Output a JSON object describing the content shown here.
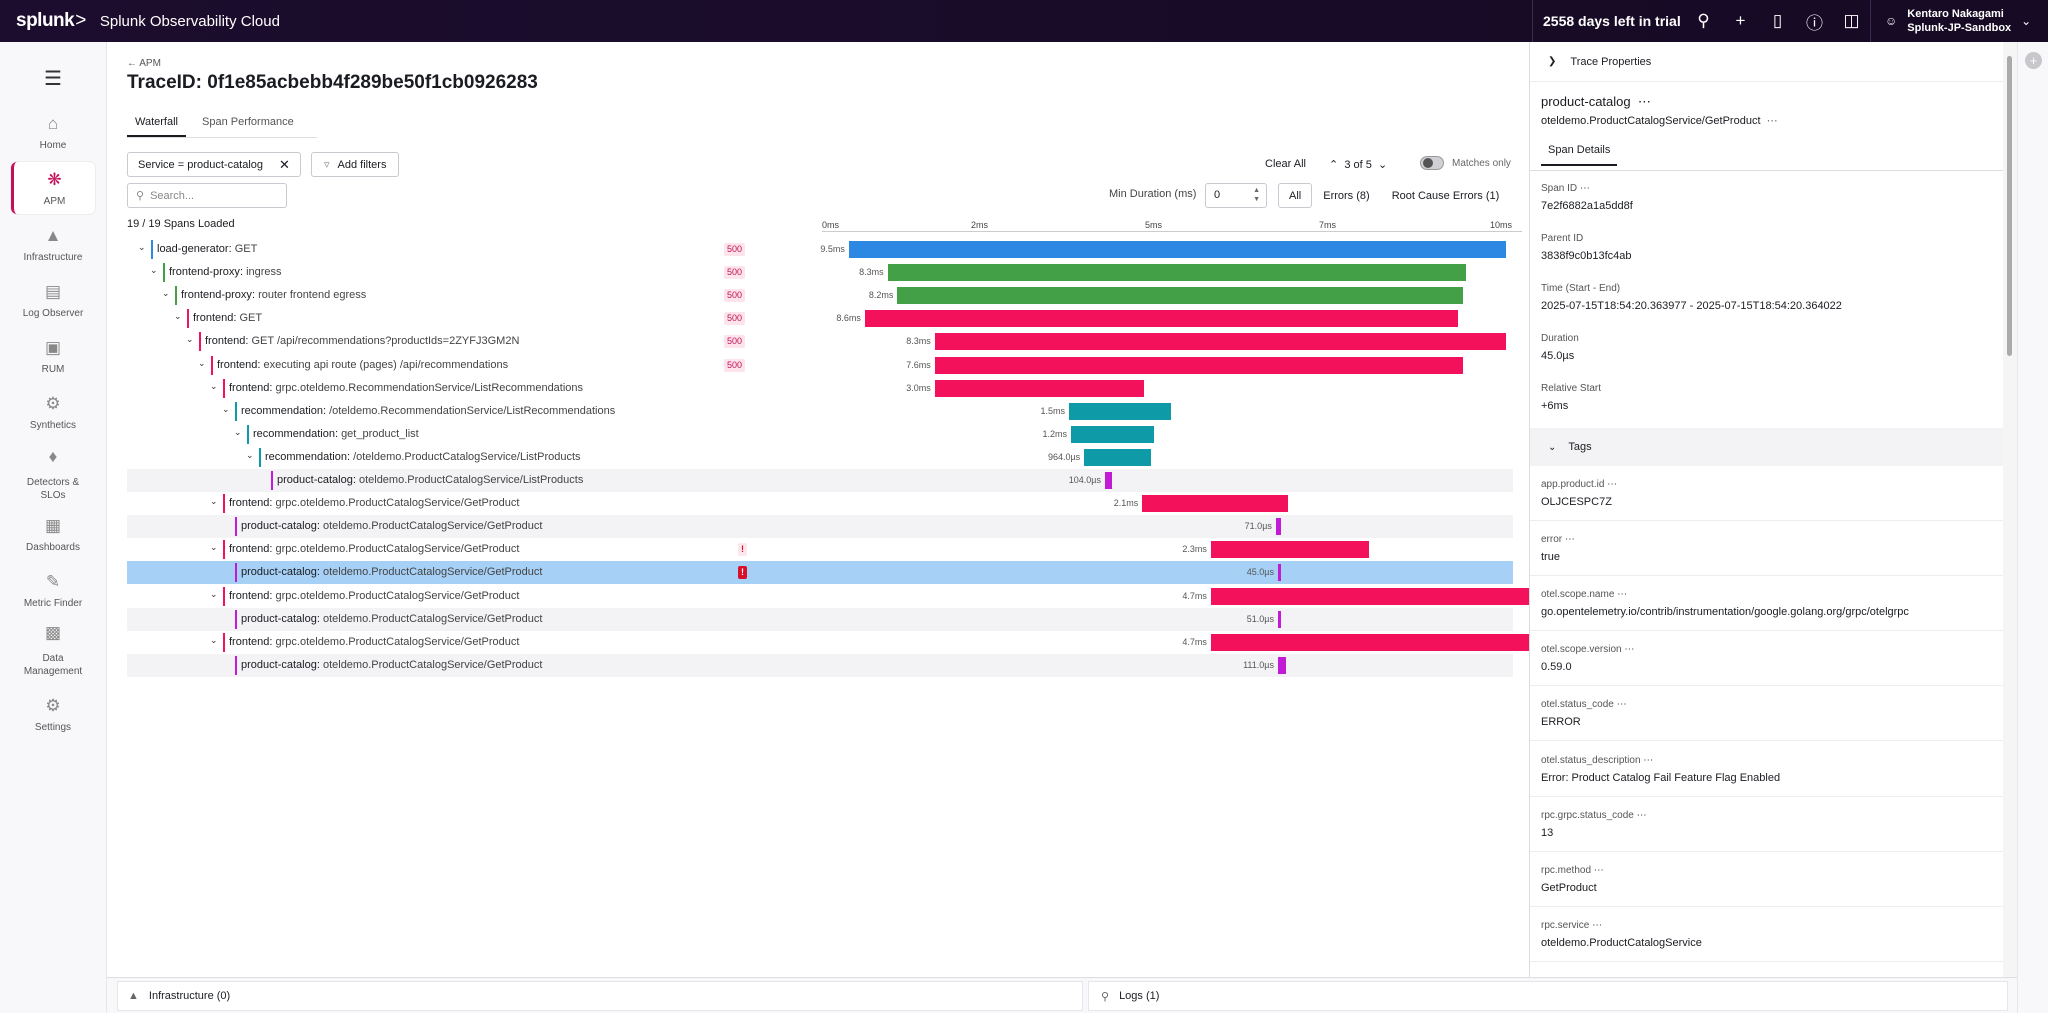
{
  "topbar": {
    "logo": "splunk",
    "logo_suffix": ">",
    "product": "Splunk Observability Cloud",
    "trial": "2558 days left in trial",
    "user_name": "Kentaro Nakagami",
    "user_org": "Splunk-JP-Sandbox"
  },
  "nav": {
    "items": [
      {
        "label": "Home",
        "icon": "home-icon"
      },
      {
        "label": "APM",
        "icon": "apm-icon"
      },
      {
        "label": "Infrastructure",
        "icon": "infrastructure-icon"
      },
      {
        "label": "Log Observer",
        "icon": "log-icon"
      },
      {
        "label": "RUM",
        "icon": "rum-icon"
      },
      {
        "label": "Synthetics",
        "icon": "synthetics-icon"
      },
      {
        "label": "Detectors &",
        "label2": "SLOs",
        "icon": "bell-icon"
      },
      {
        "label": "Dashboards",
        "icon": "dashboard-icon"
      },
      {
        "label": "Metric Finder",
        "icon": "metric-icon"
      },
      {
        "label": "Data",
        "label2": "Management",
        "icon": "database-icon"
      },
      {
        "label": "Settings",
        "icon": "gear-icon"
      }
    ]
  },
  "main": {
    "back": "APM",
    "title": "TraceID: 0f1e85acbebb4f289be50f1cb0926283",
    "tabs": [
      "Waterfall",
      "Span Performance"
    ],
    "filter_chip": "Service = product-catalog",
    "add_filters": "Add filters",
    "clear_all": "Clear All",
    "nav_count": "3 of 5",
    "matches_only": "Matches only",
    "search_placeholder": "Search...",
    "min_duration_label": "Min Duration (ms)",
    "min_duration_value": "0",
    "segments": [
      "All",
      "Errors (8)",
      "Root Cause Errors (1)"
    ],
    "spans_loaded": "19 / 19 Spans Loaded",
    "axis": [
      "0ms",
      "2ms",
      "5ms",
      "7ms",
      "10ms"
    ]
  },
  "spans": [
    {
      "svc": "load-generator",
      "op": "GET",
      "depth": 0,
      "badge": "500",
      "dur": "9.5ms",
      "start": 0.01,
      "len": 0.95,
      "color": "#2d88e3",
      "chev": true
    },
    {
      "svc": "frontend-proxy",
      "op": "ingress",
      "depth": 1,
      "badge": "500",
      "dur": "8.3ms",
      "start": 0.066,
      "len": 0.836,
      "color": "#43a047",
      "chev": true
    },
    {
      "svc": "frontend-proxy",
      "op": "router frontend egress",
      "depth": 2,
      "badge": "500",
      "dur": "8.2ms",
      "start": 0.08,
      "len": 0.818,
      "color": "#43a047",
      "chev": true
    },
    {
      "svc": "frontend",
      "op": "GET",
      "depth": 3,
      "badge": "500",
      "dur": "8.6ms",
      "start": 0.033,
      "len": 0.857,
      "color": "#f2115a",
      "chev": true
    },
    {
      "svc": "frontend",
      "op": "GET /api/recommendations?productIds=2ZYFJ3GM2N",
      "depth": 4,
      "badge": "500",
      "dur": "8.3ms",
      "start": 0.134,
      "len": 0.826,
      "color": "#f2115a",
      "chev": true
    },
    {
      "svc": "frontend",
      "op": "executing api route (pages) /api/recommendations",
      "depth": 5,
      "badge": "500",
      "dur": "7.6ms",
      "start": 0.134,
      "len": 0.763,
      "color": "#f2115a",
      "chev": true
    },
    {
      "svc": "frontend",
      "op": "grpc.oteldemo.RecommendationService/ListRecommendations",
      "depth": 6,
      "badge": "",
      "dur": "3.0ms",
      "start": 0.134,
      "len": 0.303,
      "color": "#f2115a",
      "chev": true
    },
    {
      "svc": "recommendation",
      "op": "/oteldemo.RecommendationService/ListRecommendations",
      "depth": 7,
      "badge": "",
      "dur": "1.5ms",
      "start": 0.328,
      "len": 0.147,
      "color": "#0e9aa7",
      "chev": true
    },
    {
      "svc": "recommendation",
      "op": "get_product_list",
      "depth": 8,
      "badge": "",
      "dur": "1.2ms",
      "start": 0.331,
      "len": 0.12,
      "color": "#0e9aa7",
      "chev": true
    },
    {
      "svc": "recommendation",
      "op": "/oteldemo.ProductCatalogService/ListProducts",
      "depth": 9,
      "badge": "",
      "dur": "964.0µs",
      "start": 0.35,
      "len": 0.096,
      "color": "#0e9aa7",
      "chev": true
    },
    {
      "svc": "product-catalog",
      "op": "oteldemo.ProductCatalogService/ListProducts",
      "depth": 10,
      "badge": "",
      "dur": "104.0µs",
      "start": 0.38,
      "len": 0.01,
      "color": "#c21bd6",
      "chev": false,
      "alt": true
    },
    {
      "svc": "frontend",
      "op": "grpc.oteldemo.ProductCatalogService/GetProduct",
      "depth": 6,
      "badge": "",
      "dur": "2.1ms",
      "start": 0.434,
      "len": 0.21,
      "color": "#f2115a",
      "chev": true
    },
    {
      "svc": "product-catalog",
      "op": "oteldemo.ProductCatalogService/GetProduct",
      "depth": 7,
      "badge": "",
      "dur": "71.0µs",
      "start": 0.627,
      "len": 0.007,
      "color": "#c21bd6",
      "chev": false,
      "alt": true
    },
    {
      "svc": "frontend",
      "op": "grpc.oteldemo.ProductCatalogService/GetProduct",
      "depth": 6,
      "badge": "!",
      "badgeStyle": "pink",
      "dur": "2.3ms",
      "start": 0.533,
      "len": 0.228,
      "color": "#f2115a",
      "chev": true
    },
    {
      "svc": "product-catalog",
      "op": "oteldemo.ProductCatalogService/GetProduct",
      "depth": 7,
      "badge": "!",
      "badgeStyle": "red",
      "dur": "45.0µs",
      "start": 0.63,
      "len": 0.005,
      "color": "#c21bd6",
      "chev": false,
      "sel": true
    },
    {
      "svc": "frontend",
      "op": "grpc.oteldemo.ProductCatalogService/GetProduct",
      "depth": 6,
      "badge": "",
      "dur": "4.7ms",
      "start": 0.533,
      "len": 0.467,
      "color": "#f2115a",
      "chev": true
    },
    {
      "svc": "product-catalog",
      "op": "oteldemo.ProductCatalogService/GetProduct",
      "depth": 7,
      "badge": "",
      "dur": "51.0µs",
      "start": 0.63,
      "len": 0.005,
      "color": "#c21bd6",
      "chev": false,
      "alt": true
    },
    {
      "svc": "frontend",
      "op": "grpc.oteldemo.ProductCatalogService/GetProduct",
      "depth": 6,
      "badge": "",
      "dur": "4.7ms",
      "start": 0.533,
      "len": 0.467,
      "color": "#f2115a",
      "chev": true
    },
    {
      "svc": "product-catalog",
      "op": "oteldemo.ProductCatalogService/GetProduct",
      "depth": 7,
      "badge": "",
      "dur": "111.0µs",
      "start": 0.63,
      "len": 0.011,
      "color": "#c21bd6",
      "chev": false,
      "alt": true
    }
  ],
  "panel": {
    "trace_properties": "Trace Properties",
    "title": "product-catalog",
    "subtitle": "oteldemo.ProductCatalogService/GetProduct",
    "tab": "Span Details",
    "details": [
      {
        "k": "Span ID",
        "v": "7e2f6882a1a5dd8f",
        "dots": true
      },
      {
        "k": "Parent ID",
        "v": "3838f9c0b13fc4ab",
        "dots": false
      },
      {
        "k": "Time (Start - End)",
        "v": "2025-07-15T18:54:20.363977 - 2025-07-15T18:54:20.364022",
        "dots": false
      },
      {
        "k": "Duration",
        "v": "45.0µs",
        "dots": false
      },
      {
        "k": "Relative Start",
        "v": "+6ms",
        "dots": false
      }
    ],
    "tags_label": "Tags",
    "tags": [
      {
        "k": "app.product.id",
        "v": "OLJCESPC7Z"
      },
      {
        "k": "error",
        "v": "true"
      },
      {
        "k": "otel.scope.name",
        "v": "go.opentelemetry.io/contrib/instrumentation/google.golang.org/grpc/otelgrpc"
      },
      {
        "k": "otel.scope.version",
        "v": "0.59.0"
      },
      {
        "k": "otel.status_code",
        "v": "ERROR"
      },
      {
        "k": "otel.status_description",
        "v": "Error: Product Catalog Fail Feature Flag Enabled"
      },
      {
        "k": "rpc.grpc.status_code",
        "v": "13"
      },
      {
        "k": "rpc.method",
        "v": "GetProduct"
      },
      {
        "k": "rpc.service",
        "v": "oteldemo.ProductCatalogService"
      }
    ]
  },
  "bottom": {
    "infra": "Infrastructure (0)",
    "logs": "Logs (1)"
  }
}
